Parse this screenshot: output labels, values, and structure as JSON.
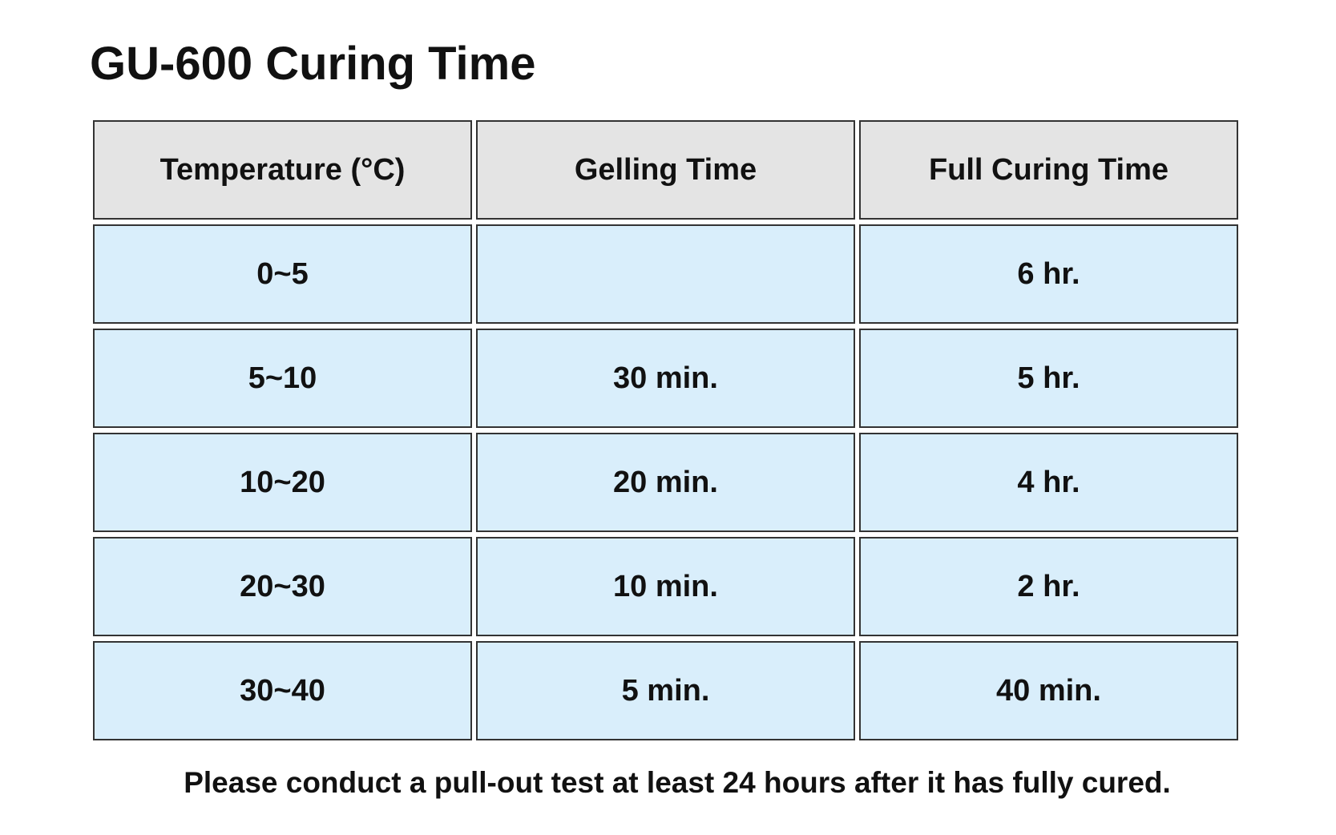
{
  "title": "GU-600 Curing Time",
  "table": {
    "header": [
      "Temperature (°C)",
      "Gelling Time",
      "Full Curing Time"
    ],
    "rows": [
      [
        "0~5",
        null,
        "6 hr."
      ],
      [
        "5~10",
        "30 min.",
        "5 hr."
      ],
      [
        "10~20",
        "20 min.",
        "4 hr."
      ],
      [
        "20~30",
        "10 min.",
        "2 hr."
      ],
      [
        "30~40",
        "5 min.",
        "40 min."
      ]
    ]
  },
  "note": "Please conduct a pull-out test at least 24 hours after it has fully cured."
}
